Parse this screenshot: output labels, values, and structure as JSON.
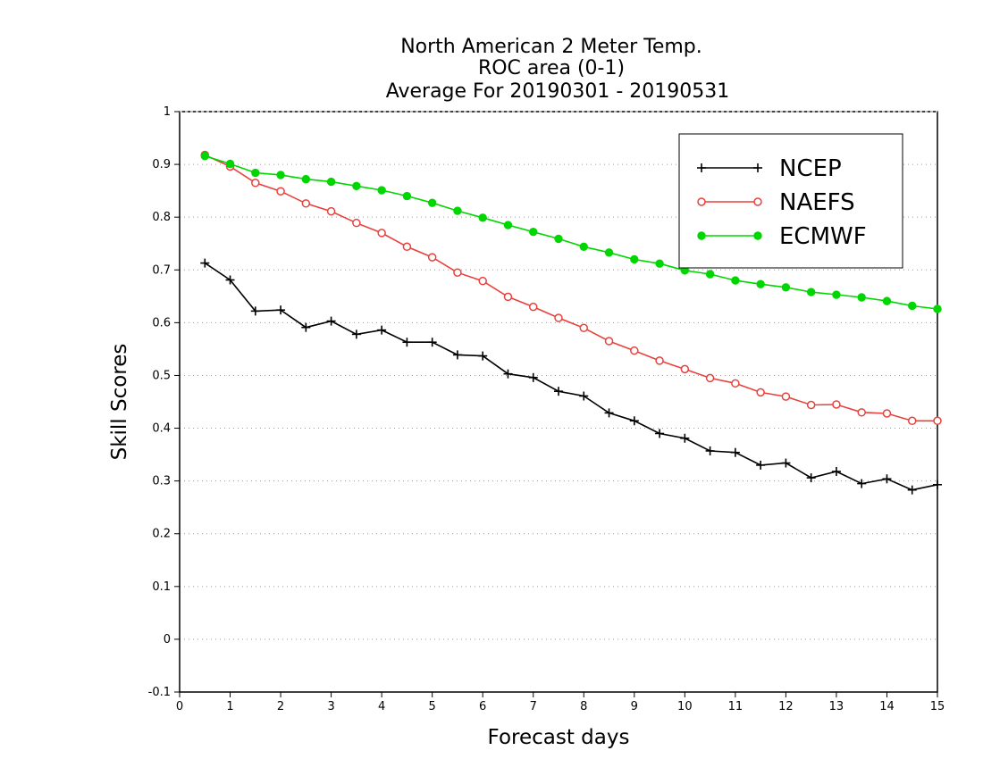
{
  "chart_data": {
    "type": "line",
    "title_lines": [
      "North American 2 Meter Temp.",
      "ROC area (0-1)",
      "Average For 20190301 - 20190531"
    ],
    "xlabel": "Forecast days",
    "ylabel": "Skill Scores",
    "xlim": [
      0,
      15
    ],
    "ylim": [
      -0.1,
      1
    ],
    "x_ticks": [
      "0",
      "1",
      "2",
      "3",
      "4",
      "5",
      "6",
      "7",
      "8",
      "9",
      "10",
      "11",
      "12",
      "13",
      "14",
      "15"
    ],
    "y_ticks": [
      "-0.1",
      "0",
      "0.1",
      "0.2",
      "0.3",
      "0.4",
      "0.5",
      "0.6",
      "0.7",
      "0.8",
      "0.9",
      "1"
    ],
    "grid": "horizontal dotted",
    "legend_position": "top-right",
    "x": [
      0.5,
      1,
      1.5,
      2,
      2.5,
      3,
      3.5,
      4,
      4.5,
      5,
      5.5,
      6,
      6.5,
      7,
      7.5,
      8,
      8.5,
      9,
      9.5,
      10,
      10.5,
      11,
      11.5,
      12,
      12.5,
      13,
      13.5,
      14,
      14.5,
      15
    ],
    "series": [
      {
        "name": "NCEP",
        "color": "#000000",
        "marker": "plus",
        "values": [
          0.713,
          0.681,
          0.622,
          0.624,
          0.591,
          0.603,
          0.578,
          0.586,
          0.563,
          0.563,
          0.539,
          0.537,
          0.503,
          0.496,
          0.47,
          0.461,
          0.429,
          0.414,
          0.39,
          0.381,
          0.357,
          0.354,
          0.33,
          0.334,
          0.306,
          0.318,
          0.295,
          0.304,
          0.283,
          0.293
        ]
      },
      {
        "name": "NAEFS",
        "color": "#e8413c",
        "marker": "open-circle",
        "values": [
          0.918,
          0.896,
          0.865,
          0.849,
          0.826,
          0.811,
          0.789,
          0.77,
          0.744,
          0.724,
          0.695,
          0.679,
          0.649,
          0.63,
          0.609,
          0.59,
          0.565,
          0.547,
          0.528,
          0.512,
          0.495,
          0.485,
          0.468,
          0.46,
          0.444,
          0.445,
          0.43,
          0.428,
          0.414,
          0.414
        ]
      },
      {
        "name": "ECMWF",
        "color": "#00d600",
        "marker": "filled-circle",
        "values": [
          0.916,
          0.901,
          0.884,
          0.88,
          0.872,
          0.867,
          0.859,
          0.851,
          0.84,
          0.827,
          0.812,
          0.799,
          0.785,
          0.772,
          0.759,
          0.744,
          0.733,
          0.72,
          0.712,
          0.699,
          0.692,
          0.68,
          0.673,
          0.667,
          0.658,
          0.653,
          0.648,
          0.641,
          0.632,
          0.626
        ]
      }
    ]
  }
}
